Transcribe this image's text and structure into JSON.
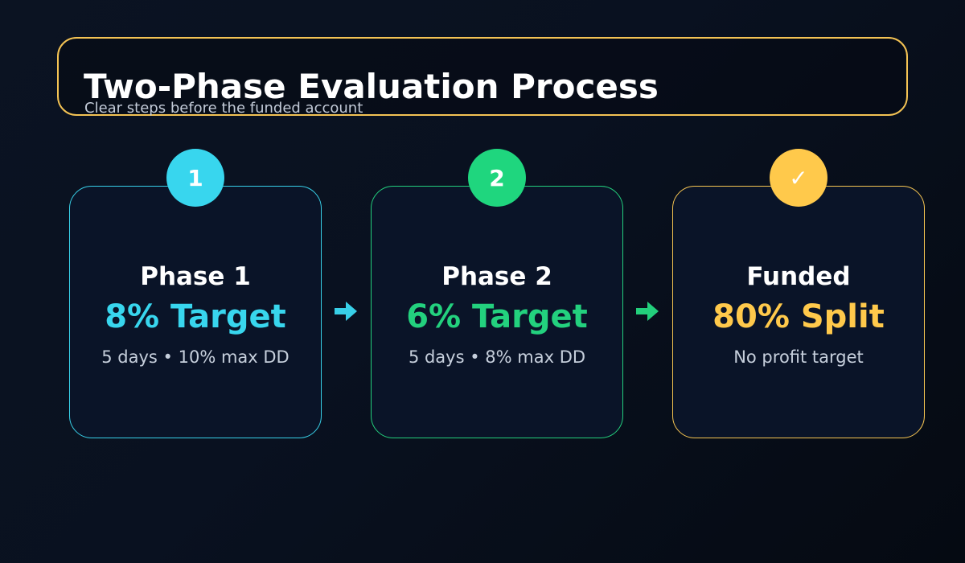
{
  "header": {
    "title": "Two-Phase Evaluation Process",
    "subtitle": "Clear steps before the funded account"
  },
  "colors": {
    "header_border": "#f4c354",
    "phase1": "#38d6ee",
    "phase2": "#1fd67e",
    "funded": "#ffc94b"
  },
  "steps": [
    {
      "badge": "1",
      "name": "Phase 1",
      "value": "8% Target",
      "detail": "5 days • 10% max DD"
    },
    {
      "badge": "2",
      "name": "Phase 2",
      "value": "6% Target",
      "detail": "5 days • 8% max DD"
    },
    {
      "badge": "✓",
      "name": "Funded",
      "value": "80% Split",
      "detail": "No profit target"
    }
  ],
  "icons": {
    "arrow_1": "arrow-right-icon",
    "arrow_2": "arrow-right-icon",
    "funded_badge": "check-icon"
  }
}
